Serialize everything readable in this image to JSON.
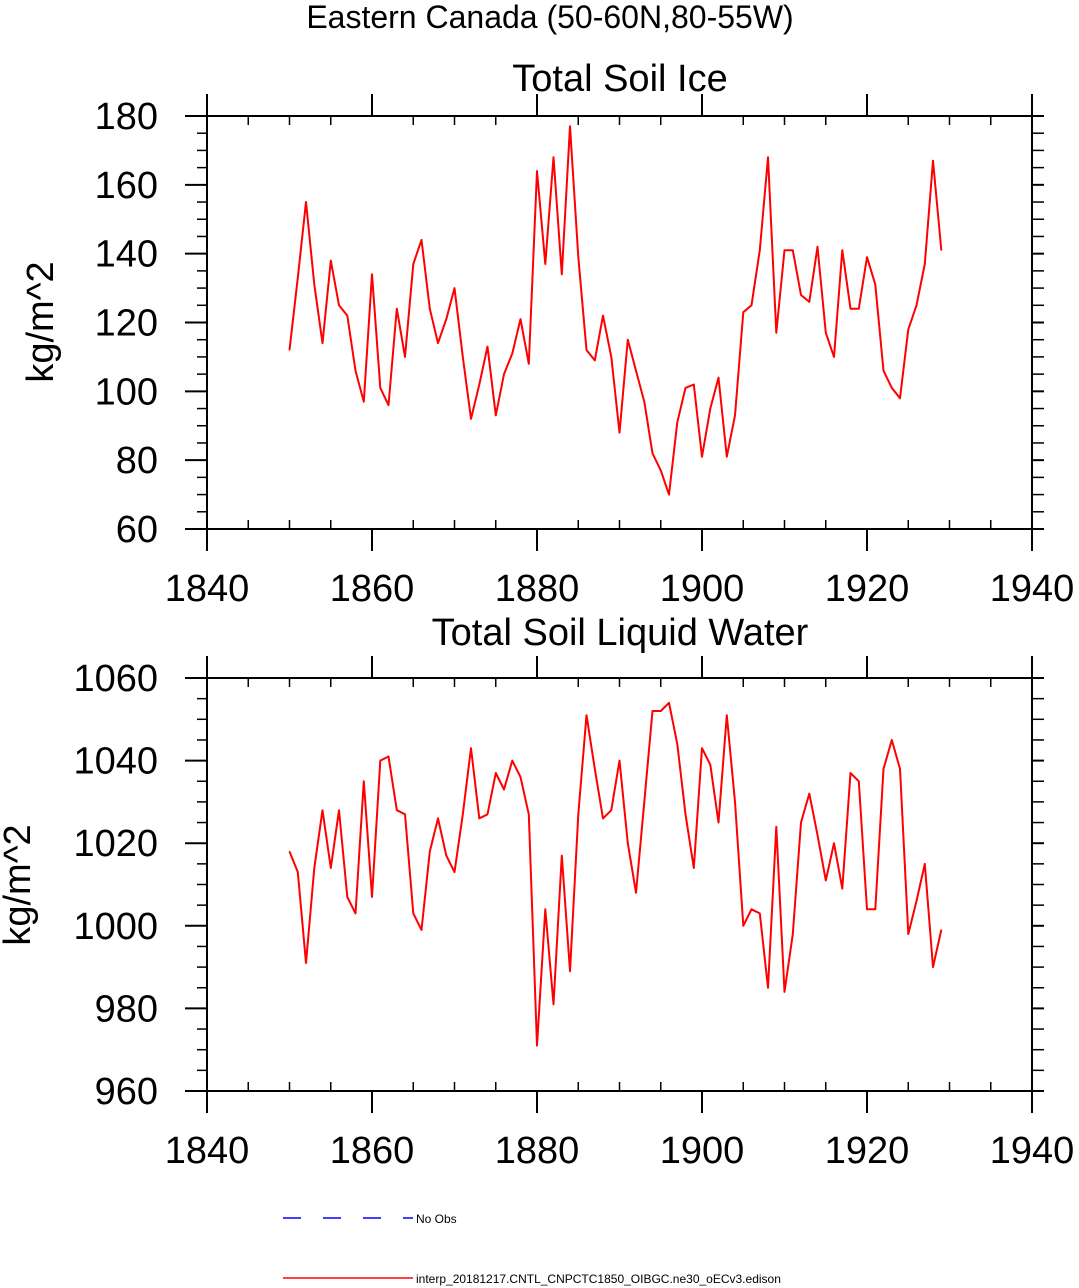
{
  "page_title": "Eastern Canada (50-60N,80-55W)",
  "colors": {
    "series": "#ff0000",
    "no_obs": "#0000ff",
    "axis": "#000000"
  },
  "legend": {
    "no_obs_label": "No Obs",
    "model_label": "interp_20181217.CNTL_CNPCTC1850_OIBGC.ne30_oECv3.edison"
  },
  "chart_data": [
    {
      "type": "line",
      "title": "Total Soil Ice",
      "ylabel": "kg/m^2",
      "xlabel": "",
      "xlim": [
        1840,
        1940
      ],
      "ylim": [
        60,
        180
      ],
      "xticks": [
        1840,
        1860,
        1880,
        1900,
        1920,
        1940
      ],
      "yticks": [
        60,
        80,
        100,
        120,
        140,
        160,
        180
      ],
      "series": [
        {
          "name": "interp_20181217.CNTL_CNPCTC1850_OIBGC.ne30_oECv3.edison",
          "x": [
            1850,
            1851,
            1852,
            1853,
            1854,
            1855,
            1856,
            1857,
            1858,
            1859,
            1860,
            1861,
            1862,
            1863,
            1864,
            1865,
            1866,
            1867,
            1868,
            1869,
            1870,
            1871,
            1872,
            1873,
            1874,
            1875,
            1876,
            1877,
            1878,
            1879,
            1880,
            1881,
            1882,
            1883,
            1884,
            1885,
            1886,
            1887,
            1888,
            1889,
            1890,
            1891,
            1892,
            1893,
            1894,
            1895,
            1896,
            1897,
            1898,
            1899,
            1900,
            1901,
            1902,
            1903,
            1904,
            1905,
            1906,
            1907,
            1908,
            1909,
            1910,
            1911,
            1912,
            1913,
            1914,
            1915,
            1916,
            1917,
            1918,
            1919,
            1920,
            1921,
            1922,
            1923,
            1924,
            1925,
            1926,
            1927,
            1928,
            1929
          ],
          "values": [
            112,
            133,
            155,
            131,
            114,
            138,
            125,
            122,
            106,
            97,
            134,
            101,
            96,
            124,
            110,
            137,
            144,
            124,
            114,
            121,
            130,
            110,
            92,
            102,
            113,
            93,
            105,
            111,
            121,
            108,
            164,
            137,
            168,
            134,
            177,
            139,
            112,
            109,
            122,
            110,
            88,
            115,
            106,
            97,
            82,
            77,
            70,
            91,
            101,
            102,
            81,
            95,
            104,
            81,
            93,
            123,
            125,
            141,
            168,
            117,
            141,
            141,
            128,
            126,
            142,
            117,
            110,
            141,
            124,
            124,
            139,
            131,
            106,
            101,
            98,
            118,
            125,
            137,
            167,
            141
          ]
        }
      ]
    },
    {
      "type": "line",
      "title": "Total Soil Liquid Water",
      "ylabel": "kg/m^2",
      "xlabel": "",
      "xlim": [
        1840,
        1940
      ],
      "ylim": [
        960,
        1060
      ],
      "xticks": [
        1840,
        1860,
        1880,
        1900,
        1920,
        1940
      ],
      "yticks": [
        960,
        980,
        1000,
        1020,
        1040,
        1060
      ],
      "series": [
        {
          "name": "interp_20181217.CNTL_CNPCTC1850_OIBGC.ne30_oECv3.edison",
          "x": [
            1850,
            1851,
            1852,
            1853,
            1854,
            1855,
            1856,
            1857,
            1858,
            1859,
            1860,
            1861,
            1862,
            1863,
            1864,
            1865,
            1866,
            1867,
            1868,
            1869,
            1870,
            1871,
            1872,
            1873,
            1874,
            1875,
            1876,
            1877,
            1878,
            1879,
            1880,
            1881,
            1882,
            1883,
            1884,
            1885,
            1886,
            1887,
            1888,
            1889,
            1890,
            1891,
            1892,
            1893,
            1894,
            1895,
            1896,
            1897,
            1898,
            1899,
            1900,
            1901,
            1902,
            1903,
            1904,
            1905,
            1906,
            1907,
            1908,
            1909,
            1910,
            1911,
            1912,
            1913,
            1914,
            1915,
            1916,
            1917,
            1918,
            1919,
            1920,
            1921,
            1922,
            1923,
            1924,
            1925,
            1926,
            1927,
            1928,
            1929
          ],
          "values": [
            1018,
            1013,
            991,
            1014,
            1028,
            1014,
            1028,
            1007,
            1003,
            1035,
            1007,
            1040,
            1041,
            1028,
            1027,
            1003,
            999,
            1018,
            1026,
            1017,
            1013,
            1027,
            1043,
            1026,
            1027,
            1037,
            1033,
            1040,
            1036,
            1027,
            971,
            1004,
            981,
            1017,
            989,
            1027,
            1051,
            1038,
            1026,
            1028,
            1040,
            1020,
            1008,
            1030,
            1052,
            1052,
            1054,
            1044,
            1027,
            1014,
            1043,
            1039,
            1025,
            1051,
            1030,
            1000,
            1004,
            1003,
            985,
            1024,
            984,
            998,
            1025,
            1032,
            1022,
            1011,
            1020,
            1009,
            1037,
            1035,
            1004,
            1004,
            1038,
            1045,
            1038,
            998,
            1006,
            1015,
            990,
            999
          ]
        }
      ]
    }
  ]
}
